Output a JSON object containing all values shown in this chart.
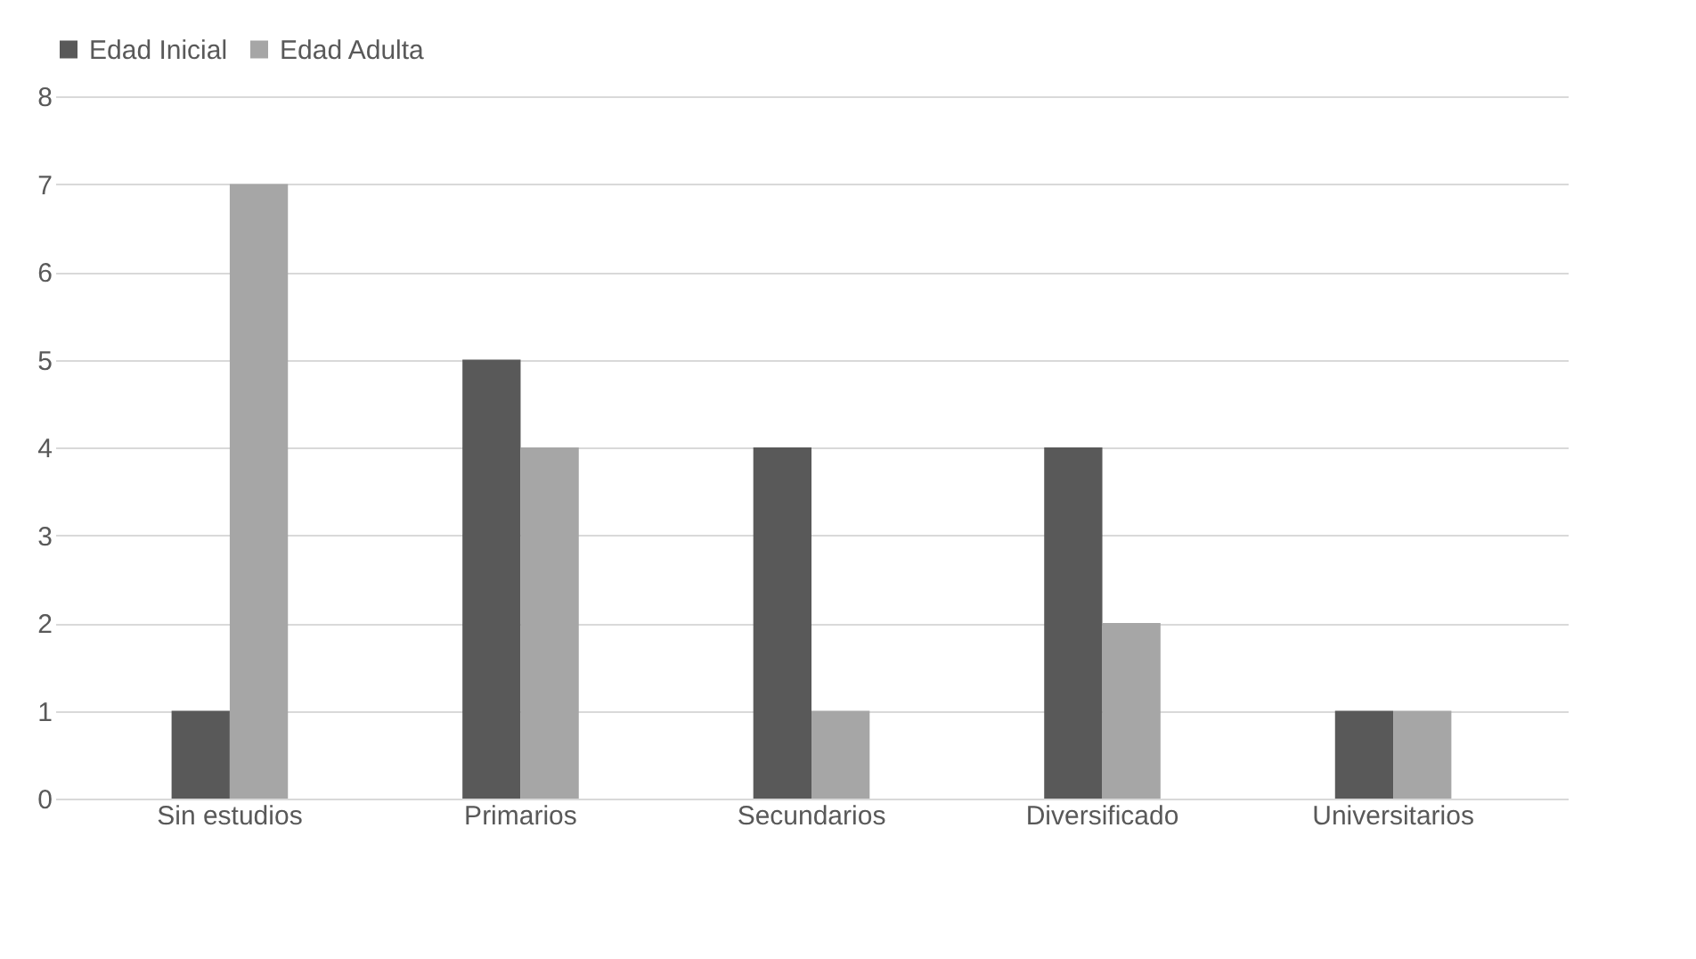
{
  "chart_data": {
    "type": "bar",
    "categories": [
      "Sin estudios",
      "Primarios",
      "Secundarios",
      "Diversificado",
      "Universitarios"
    ],
    "series": [
      {
        "name": "Edad Inicial",
        "color": "#595959",
        "values": [
          1,
          5,
          4,
          4,
          1
        ]
      },
      {
        "name": "Edad Adulta",
        "color": "#a6a6a6",
        "values": [
          7,
          4,
          1,
          2,
          1
        ]
      }
    ],
    "ylim": [
      0,
      8
    ],
    "yticks": [
      0,
      1,
      2,
      3,
      4,
      5,
      6,
      7,
      8
    ],
    "grid": "y",
    "legend": "top"
  }
}
